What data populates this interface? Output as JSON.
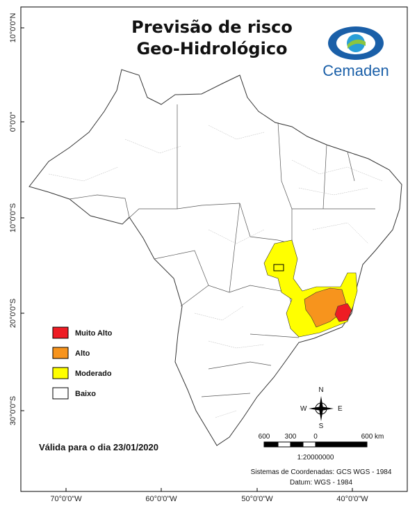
{
  "header": {
    "title_line1": "Previsão de risco",
    "title_line2": "Geo-Hidrológico",
    "logo_text": "Cemaden"
  },
  "legend": [
    {
      "label": "Muito Alto",
      "color": "#ee1c24"
    },
    {
      "label": "Alto",
      "color": "#f7941d"
    },
    {
      "label": "Moderado",
      "color": "#ffff00"
    },
    {
      "label": "Baixo",
      "color": "#ffffff"
    }
  ],
  "latitude_labels": [
    "10°0'0\"N",
    "0°0'0\"",
    "10°0'0\"S",
    "20°0'0\"S",
    "30°0'0\"S"
  ],
  "longitude_labels": [
    "70°0'0\"W",
    "60°0'0\"W",
    "50°0'0\"W",
    "40°0'0\"W"
  ],
  "validity": "Válida para o dia 23/01/2020",
  "compass": {
    "north": "N",
    "south": "S",
    "east": "E",
    "west": "W"
  },
  "scale_bar": {
    "labels": [
      "600",
      "300",
      "0",
      "600 km"
    ],
    "ratio": "1:20000000"
  },
  "coordinate_system": "Sistemas de Coordenadas: GCS WGS - 1984",
  "datum": "Datum: WGS - 1984"
}
